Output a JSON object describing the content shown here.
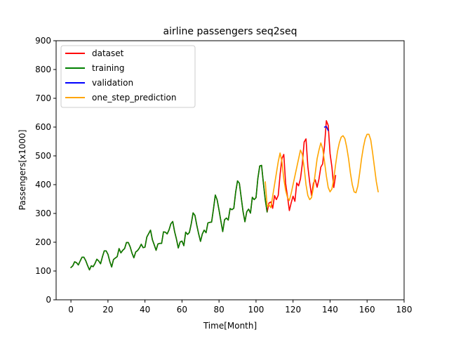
{
  "chart_data": {
    "type": "line",
    "title": "airline passengers seq2seq",
    "xlabel": "Time[Month]",
    "ylabel": "Passengers[x1000]",
    "xlim": [
      -8,
      180
    ],
    "ylim": [
      0,
      900
    ],
    "xticks": [
      0,
      20,
      40,
      60,
      80,
      100,
      120,
      140,
      160,
      180
    ],
    "yticks": [
      0,
      100,
      200,
      300,
      400,
      500,
      600,
      700,
      800,
      900
    ],
    "grid": false,
    "legend_position": "top-left",
    "series": [
      {
        "name": "dataset",
        "color": "#ff0000",
        "x0": 0,
        "values": [
          112,
          118,
          132,
          129,
          121,
          135,
          148,
          148,
          136,
          119,
          104,
          118,
          115,
          126,
          141,
          135,
          125,
          149,
          170,
          170,
          158,
          133,
          114,
          140,
          145,
          150,
          178,
          163,
          172,
          178,
          199,
          199,
          184,
          162,
          146,
          166,
          171,
          180,
          193,
          181,
          183,
          218,
          230,
          242,
          209,
          191,
          172,
          194,
          196,
          196,
          236,
          235,
          229,
          243,
          264,
          272,
          237,
          211,
          180,
          201,
          204,
          188,
          235,
          227,
          234,
          264,
          302,
          293,
          259,
          229,
          203,
          229,
          242,
          233,
          267,
          269,
          270,
          315,
          364,
          347,
          312,
          274,
          237,
          278,
          284,
          277,
          317,
          313,
          318,
          374,
          413,
          405,
          355,
          306,
          271,
          306,
          315,
          301,
          356,
          348,
          355,
          422,
          465,
          467,
          404,
          347,
          305,
          336,
          340,
          318,
          362,
          348,
          363,
          435,
          491,
          505,
          404,
          359,
          310,
          337,
          360,
          342,
          406,
          396,
          420,
          472,
          548,
          559,
          463,
          407,
          362,
          405,
          417,
          391,
          419,
          461,
          472,
          535,
          622,
          606,
          508,
          461,
          390,
          432
        ]
      },
      {
        "name": "training",
        "color": "#008000",
        "x0": 0,
        "values": [
          112,
          118,
          132,
          129,
          121,
          135,
          148,
          148,
          136,
          119,
          104,
          118,
          115,
          126,
          141,
          135,
          125,
          149,
          170,
          170,
          158,
          133,
          114,
          140,
          145,
          150,
          178,
          163,
          172,
          178,
          199,
          199,
          184,
          162,
          146,
          166,
          171,
          180,
          193,
          181,
          183,
          218,
          230,
          242,
          209,
          191,
          172,
          194,
          196,
          196,
          236,
          235,
          229,
          243,
          264,
          272,
          237,
          211,
          180,
          201,
          204,
          188,
          235,
          227,
          234,
          264,
          302,
          293,
          259,
          229,
          203,
          229,
          242,
          233,
          267,
          269,
          270,
          315,
          364,
          347,
          312,
          274,
          237,
          278,
          284,
          277,
          317,
          313,
          318,
          374,
          413,
          405,
          355,
          306,
          271,
          306,
          315,
          301,
          356,
          348,
          355,
          422,
          465,
          467,
          404,
          347,
          305
        ]
      },
      {
        "name": "validation",
        "color": "#0000ff",
        "x0": 137,
        "values": [
          600,
          602,
          588
        ]
      },
      {
        "name": "one_step_prediction",
        "color": "#ffa500",
        "x0": 105,
        "values": [
          410,
          325,
          330,
          320,
          360,
          400,
          440,
          480,
          510,
          480,
          420,
          380,
          355,
          345,
          370,
          400,
          430,
          460,
          490,
          520,
          505,
          460,
          400,
          362,
          348,
          355,
          390,
          440,
          490,
          520,
          545,
          525,
          480,
          430,
          390,
          375,
          385,
          420,
          470,
          515,
          545,
          565,
          570,
          560,
          530,
          490,
          440,
          400,
          375,
          372,
          395,
          440,
          490,
          530,
          560,
          575,
          575,
          555,
          510,
          460,
          410,
          375
        ]
      }
    ]
  }
}
